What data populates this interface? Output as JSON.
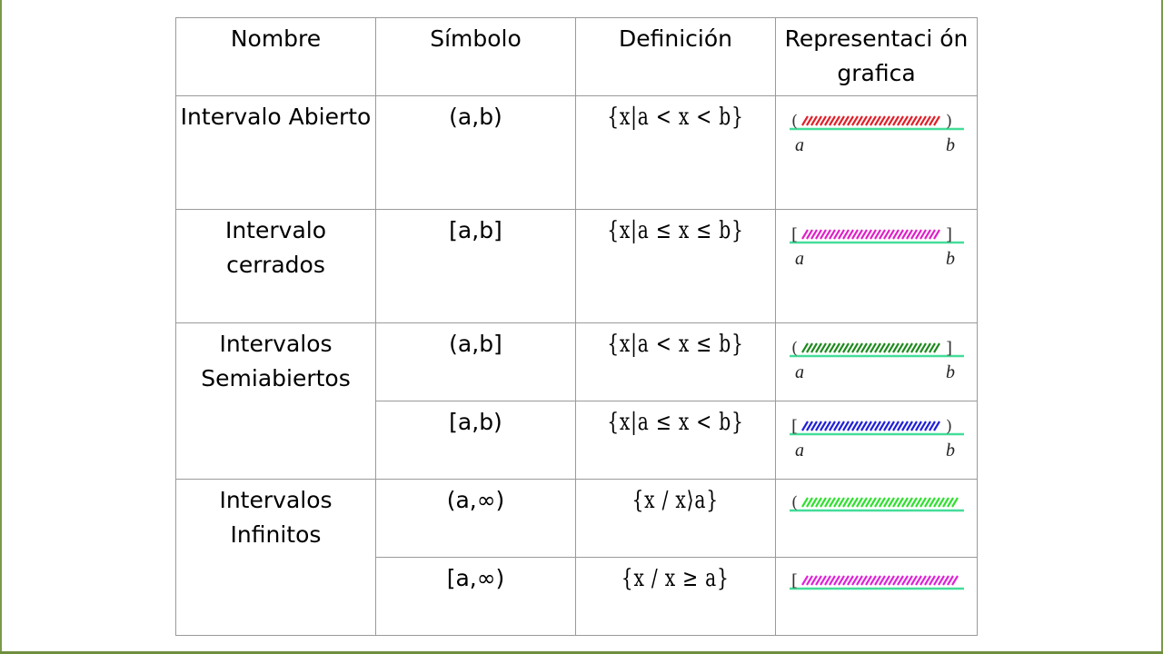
{
  "table": {
    "headers": [
      "Nombre",
      "Símbolo",
      "Definición",
      "Representaci ón grafica"
    ],
    "rows": [
      {
        "name": "Intervalo Abierto",
        "symbol": "(a,b)",
        "definition": "{x|a < x < b}",
        "left": "(",
        "right": ")",
        "label_a": "a",
        "label_b": "b",
        "hatch_color": "#e0202a"
      },
      {
        "name": "Intervalo cerrados",
        "symbol": "[a,b]",
        "definition": "{x|a ≤ x ≤ b}",
        "left": "[",
        "right": "]",
        "label_a": "a",
        "label_b": "b",
        "hatch_color": "#e020c8"
      },
      {
        "name": "Intervalos Semiabiertos",
        "symbol": "(a,b]",
        "definition": "{x|a < x ≤ b}",
        "left": "(",
        "right": "]",
        "label_a": "a",
        "label_b": "b",
        "hatch_color": "#1e8a1e"
      },
      {
        "name": "",
        "symbol": "[a,b)",
        "definition": "{x|a ≤ x < b}",
        "left": "[",
        "right": ")",
        "label_a": "a",
        "label_b": "b",
        "hatch_color": "#2020d8"
      },
      {
        "name": "Intervalos Infinitos",
        "symbol": "(a,∞)",
        "definition": "{x / x⟩a}",
        "left": "(",
        "right": "",
        "label_a": "",
        "label_b": "",
        "hatch_color": "#30e030"
      },
      {
        "name": "",
        "symbol": "[a,∞)",
        "definition": "{x / x ≥ a}",
        "left": "[",
        "right": "",
        "label_a": "",
        "label_b": "",
        "hatch_color": "#e020d8"
      }
    ]
  },
  "line_color": "#44dd99"
}
